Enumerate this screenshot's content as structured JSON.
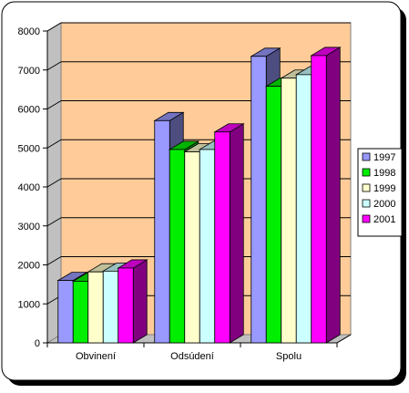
{
  "chart_data": {
    "type": "bar",
    "title": "",
    "xlabel": "",
    "ylabel": "",
    "categories": [
      "Obvinení",
      "Odsúdení",
      "Spolu"
    ],
    "y_ticks": [
      "0",
      "1000",
      "2000",
      "3000",
      "4000",
      "5000",
      "6000",
      "7000",
      "8000"
    ],
    "ylim": [
      0,
      8000
    ],
    "grid": true,
    "legend_position": "right",
    "three_d": true,
    "series": [
      {
        "name": "1997",
        "values": [
          1600,
          5700,
          7350
        ],
        "color": "#9999ff"
      },
      {
        "name": "1998",
        "values": [
          1580,
          4960,
          6580
        ],
        "color": "#00ee00"
      },
      {
        "name": "1999",
        "values": [
          1820,
          4900,
          6790
        ],
        "color": "#ffffcc"
      },
      {
        "name": "2000",
        "values": [
          1840,
          4960,
          6880
        ],
        "color": "#ccffff"
      },
      {
        "name": "2001",
        "values": [
          1920,
          5410,
          7370
        ],
        "color": "#ff00ff"
      }
    ],
    "colors": {
      "plot_background": "#ffcc99",
      "frame_border": "#000000"
    }
  }
}
